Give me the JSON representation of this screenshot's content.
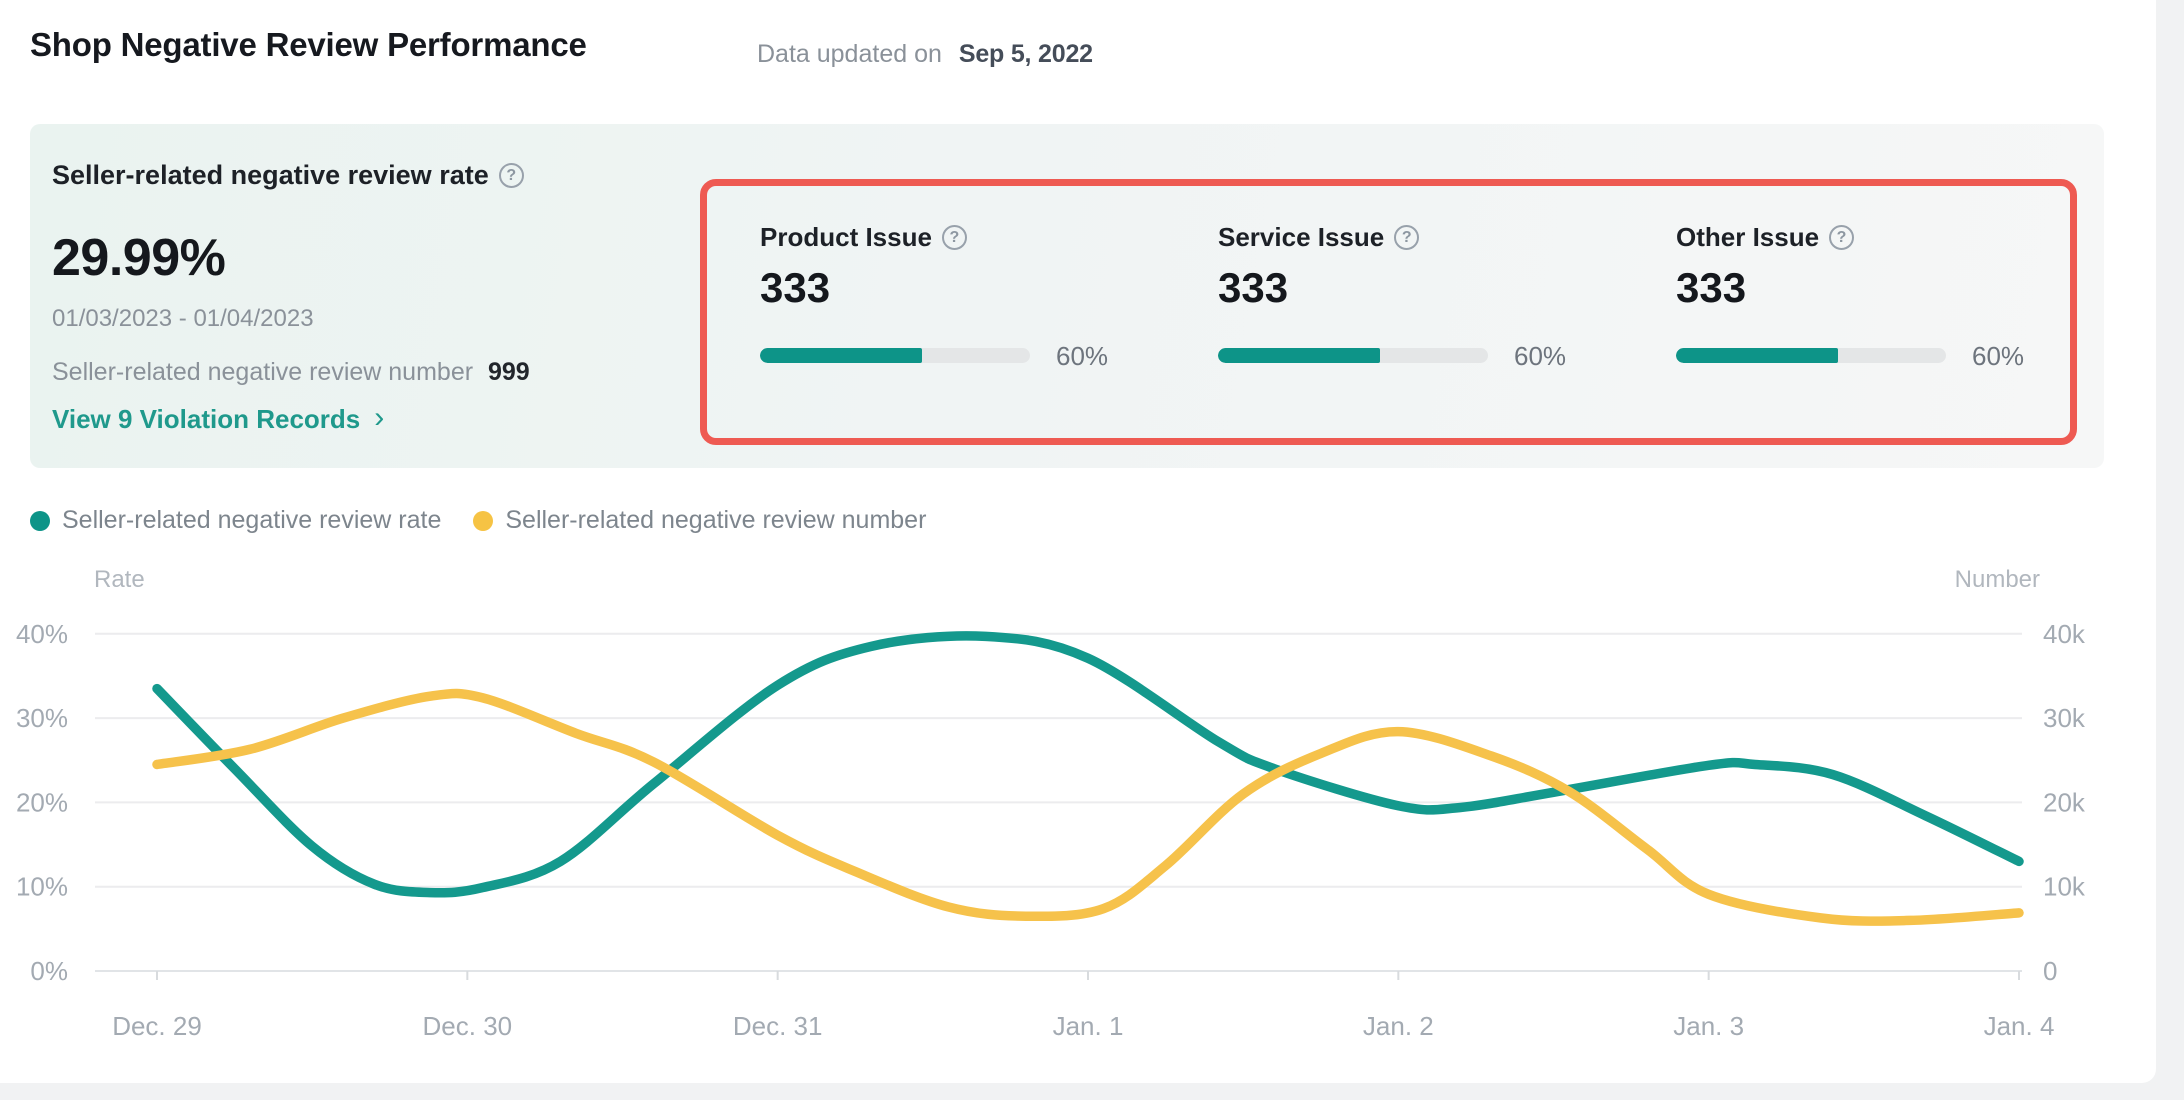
{
  "header": {
    "title": "Shop Negative Review Performance",
    "updated_label": "Data updated on",
    "updated_date": "Sep 5, 2022"
  },
  "icons": {
    "help_glyph": "?"
  },
  "summary_card": {
    "title": "Seller-related negative review rate",
    "rate_value": "29.99%",
    "date_range": "01/03/2023 - 01/04/2023",
    "review_number_label": "Seller-related negative review number",
    "review_number_value": "999",
    "link_label": "View 9 Violation Records",
    "link_chevron": "›"
  },
  "issues": {
    "highlight_color": "#ee5a52",
    "bar_color": "#0d9488",
    "items": [
      {
        "label": "Product Issue",
        "value": "333",
        "progress_pct": 60,
        "progress_label": "60%"
      },
      {
        "label": "Service Issue",
        "value": "333",
        "progress_pct": 60,
        "progress_label": "60%"
      },
      {
        "label": "Other Issue",
        "value": "333",
        "progress_pct": 60,
        "progress_label": "60%"
      }
    ]
  },
  "legend": {
    "items": [
      {
        "label": "Seller-related negative review rate",
        "color": "#0d9488"
      },
      {
        "label": "Seller-related negative review number",
        "color": "#f6c344"
      }
    ]
  },
  "chart_data": {
    "type": "line",
    "smooth": true,
    "grid": true,
    "legend_position": "top-left",
    "categories": [
      "Dec. 29",
      "Dec. 30",
      "Dec. 31",
      "Jan. 1",
      "Jan. 2",
      "Jan. 3",
      "Jan. 4"
    ],
    "y_left": {
      "title": "Rate",
      "unit": "%",
      "min": 0,
      "max": 40,
      "tick_labels": [
        "40%",
        "30%",
        "20%",
        "10%",
        "0%"
      ]
    },
    "y_right": {
      "title": "Number",
      "unit": "k",
      "min": 0,
      "max": 40000,
      "tick_labels": [
        "40k",
        "30k",
        "20k",
        "10k",
        "0"
      ]
    },
    "series": [
      {
        "name": "Seller-related negative review rate",
        "axis": "left",
        "color": "#14998d",
        "values": [
          33.5,
          10,
          34,
          37,
          19.5,
          24.5,
          13
        ],
        "curve_samples": [
          [
            0,
            33.5
          ],
          [
            0.25,
            24
          ],
          [
            0.5,
            14.8
          ],
          [
            0.7,
            10.3
          ],
          [
            0.88,
            9.3
          ],
          [
            1.05,
            9.9
          ],
          [
            1.3,
            13
          ],
          [
            1.6,
            22.2
          ],
          [
            2,
            33.9
          ],
          [
            2.3,
            38.5
          ],
          [
            2.67,
            39.7
          ],
          [
            3,
            37.1
          ],
          [
            3.42,
            27.2
          ],
          [
            3.6,
            24
          ],
          [
            4,
            19.6
          ],
          [
            4.2,
            19.4
          ],
          [
            4.5,
            21.2
          ],
          [
            5,
            24.4
          ],
          [
            5.15,
            24.5
          ],
          [
            5.4,
            23.3
          ],
          [
            5.7,
            18.4
          ],
          [
            6,
            13
          ]
        ]
      },
      {
        "name": "Seller-related negative review number",
        "axis": "right",
        "color": "#f6c24b",
        "values": [
          24.5,
          32.5,
          16,
          7.5,
          28.5,
          9,
          7
        ],
        "curve_samples": [
          [
            0,
            24.5
          ],
          [
            0.3,
            26.3
          ],
          [
            0.6,
            30
          ],
          [
            0.88,
            32.6
          ],
          [
            1.05,
            32.4
          ],
          [
            1.35,
            28.2
          ],
          [
            1.6,
            24.8
          ],
          [
            2,
            16.1
          ],
          [
            2.25,
            11.8
          ],
          [
            2.55,
            7.6
          ],
          [
            2.8,
            6.5
          ],
          [
            3.05,
            7.4
          ],
          [
            3.25,
            12.5
          ],
          [
            3.5,
            21
          ],
          [
            3.75,
            25.8
          ],
          [
            4,
            28.4
          ],
          [
            4.3,
            25.5
          ],
          [
            4.55,
            21.3
          ],
          [
            4.8,
            14.5
          ],
          [
            5,
            9.1
          ],
          [
            5.36,
            6.3
          ],
          [
            5.65,
            6.0
          ],
          [
            6,
            6.9
          ]
        ]
      }
    ]
  }
}
